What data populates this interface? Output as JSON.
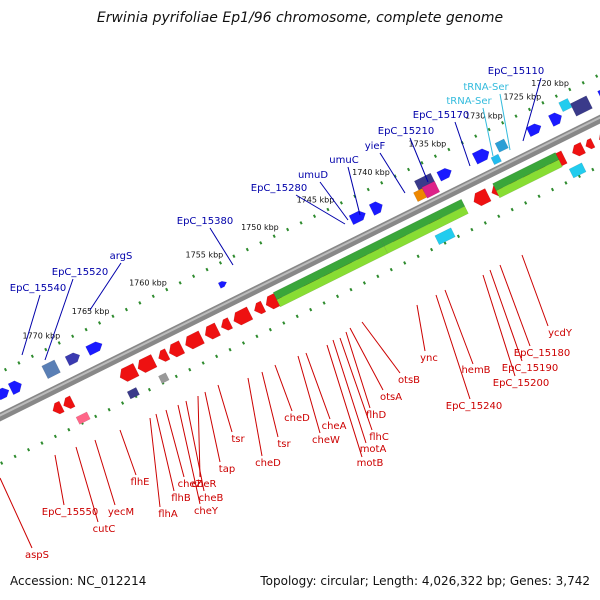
{
  "title": "Erwinia pyrifoliae Ep1/96 chromosome, complete genome",
  "accession": "Accession: NC_012214",
  "summary": "Topology: circular; Length: 4,026,322 bp; Genes: 3,742",
  "colors": {
    "forward_label": "#0000aa",
    "reverse_label": "#cc0000",
    "trna_label": "#33bbdd",
    "forward_gene": "#1a1aff",
    "reverse_gene": "#ee1111",
    "backbone": "#777777",
    "tick_dots": "#2e8b2e"
  },
  "scale_ticks": [
    "1720 kbp",
    "1725 kbp",
    "1730 kbp",
    "1735 kbp",
    "1740 kbp",
    "1745 kbp",
    "1750 kbp",
    "1755 kbp",
    "1760 kbp",
    "1765 kbp",
    "1770 kbp"
  ],
  "upper_labels": [
    {
      "text": "EpC_15110",
      "type": "forward"
    },
    {
      "text": "tRNA-Ser",
      "type": "trna"
    },
    {
      "text": "tRNA-Ser",
      "type": "trna"
    },
    {
      "text": "EpC_15170",
      "type": "forward"
    },
    {
      "text": "EpC_15210",
      "type": "forward"
    },
    {
      "text": "yieF",
      "type": "forward"
    },
    {
      "text": "umuC",
      "type": "forward"
    },
    {
      "text": "umuD",
      "type": "forward"
    },
    {
      "text": "EpC_15280",
      "type": "forward"
    },
    {
      "text": "EpC_15380",
      "type": "forward"
    },
    {
      "text": "argS",
      "type": "forward"
    },
    {
      "text": "EpC_15520",
      "type": "forward"
    },
    {
      "text": "EpC_15540",
      "type": "forward"
    }
  ],
  "lower_labels": [
    {
      "text": "ycdY",
      "type": "reverse"
    },
    {
      "text": "EpC_15180",
      "type": "reverse"
    },
    {
      "text": "EpC_15190",
      "type": "reverse"
    },
    {
      "text": "EpC_15200",
      "type": "reverse"
    },
    {
      "text": "hemB",
      "type": "reverse"
    },
    {
      "text": "EpC_15240",
      "type": "reverse"
    },
    {
      "text": "ync",
      "type": "reverse"
    },
    {
      "text": "otsB",
      "type": "reverse"
    },
    {
      "text": "otsA",
      "type": "reverse"
    },
    {
      "text": "flhD",
      "type": "reverse"
    },
    {
      "text": "flhC",
      "type": "reverse"
    },
    {
      "text": "motA",
      "type": "reverse"
    },
    {
      "text": "motB",
      "type": "reverse"
    },
    {
      "text": "cheA",
      "type": "reverse"
    },
    {
      "text": "cheW",
      "type": "reverse"
    },
    {
      "text": "cheD",
      "type": "reverse"
    },
    {
      "text": "tsr",
      "type": "reverse"
    },
    {
      "text": "cheD",
      "type": "reverse"
    },
    {
      "text": "tsr",
      "type": "reverse"
    },
    {
      "text": "tap",
      "type": "reverse"
    },
    {
      "text": "cheR",
      "type": "reverse"
    },
    {
      "text": "cheB",
      "type": "reverse"
    },
    {
      "text": "cheY",
      "type": "reverse"
    },
    {
      "text": "cheZ",
      "type": "reverse"
    },
    {
      "text": "flhB",
      "type": "reverse"
    },
    {
      "text": "flhA",
      "type": "reverse"
    },
    {
      "text": "flhE",
      "type": "reverse"
    },
    {
      "text": "yecM",
      "type": "reverse"
    },
    {
      "text": "cutC",
      "type": "reverse"
    },
    {
      "text": "EpC_15550",
      "type": "reverse"
    },
    {
      "text": "aspS",
      "type": "reverse"
    }
  ]
}
